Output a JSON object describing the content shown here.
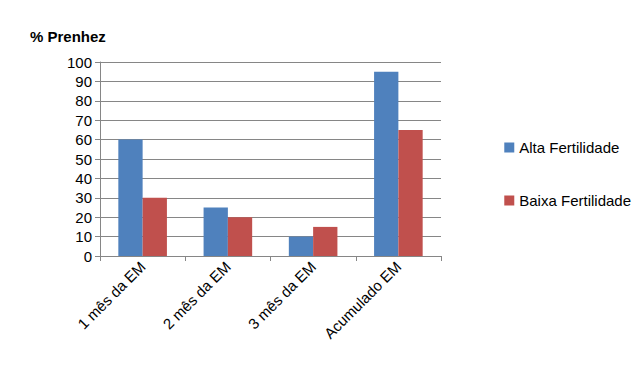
{
  "chart_data": {
    "type": "bar",
    "y_label": "% Prenhez",
    "categories": [
      "1 mês da EM",
      "2 mês da EM",
      "3 mês da EM",
      "Acumulado EM"
    ],
    "series": [
      {
        "name": "Alta Fertilidade",
        "color": "#4F81BD",
        "values": [
          60,
          25,
          10,
          95
        ]
      },
      {
        "name": "Baixa Fertilidade",
        "color": "#C0504D",
        "values": [
          30,
          20,
          15,
          65
        ]
      }
    ],
    "ylim": [
      0,
      100
    ],
    "yticks": [
      0,
      10,
      20,
      30,
      40,
      50,
      60,
      70,
      80,
      90,
      100
    ],
    "grid": true,
    "legend": "right"
  }
}
